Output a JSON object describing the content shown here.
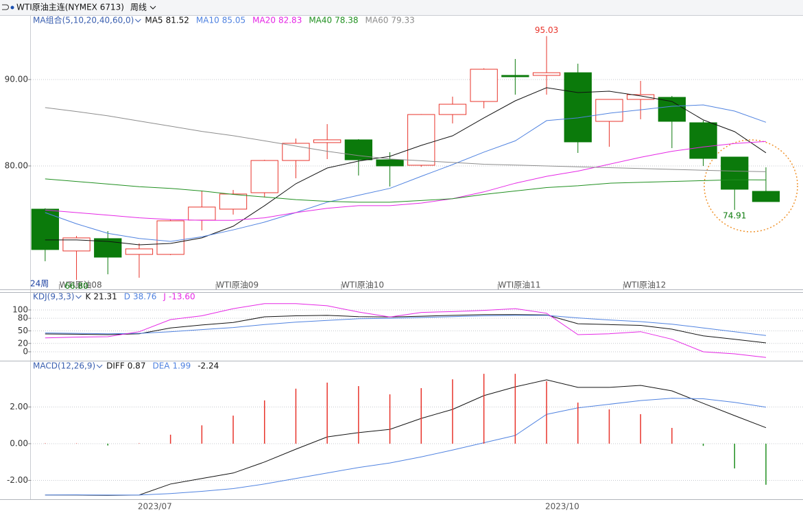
{
  "header": {
    "symbol": "WTI原油主连(NYMEX 6713)",
    "period": "周线"
  },
  "chart_data": [
    {
      "type": "candlestick",
      "indicator": "MA组合(5,10,20,40,60,0)",
      "period_label": "24周",
      "categories": [
        null,
        "WTI原油08",
        null,
        null,
        null,
        null,
        "WTI原油09",
        null,
        null,
        null,
        "WTI原油10",
        null,
        null,
        null,
        null,
        "WTI原油11",
        null,
        null,
        null,
        "WTI原油12",
        null,
        null,
        null,
        null
      ],
      "date_labels": [
        null,
        null,
        null,
        null,
        "2023/07",
        null,
        null,
        null,
        null,
        null,
        null,
        null,
        null,
        null,
        null,
        null,
        null,
        "2023/10",
        null,
        null,
        null,
        null,
        null,
        null
      ],
      "open": [
        75.0,
        70.16,
        71.59,
        69.76,
        69.76,
        73.73,
        75.0,
        76.9,
        80.63,
        82.7,
        83.02,
        80.71,
        80.08,
        85.95,
        87.46,
        90.48,
        90.48,
        90.79,
        85.16,
        87.7,
        87.94,
        85.0,
        81.03,
        77.06
      ],
      "high": [
        75.1,
        71.9,
        72.46,
        71.03,
        73.81,
        77.14,
        77.22,
        80.71,
        83.17,
        84.84,
        83.1,
        81.59,
        86.0,
        88.02,
        91.3,
        92.38,
        95.03,
        91.83,
        87.7,
        89.84,
        88.1,
        85.24,
        81.03,
        79.84
      ],
      "low": [
        68.97,
        66.8,
        67.46,
        67.06,
        69.68,
        72.54,
        74.37,
        76.35,
        78.57,
        80.79,
        78.89,
        77.62,
        79.9,
        84.92,
        86.67,
        88.25,
        88.25,
        81.51,
        82.22,
        85.4,
        82.06,
        80.0,
        74.91,
        75.87
      ],
      "close": [
        70.32,
        71.67,
        69.44,
        70.4,
        73.65,
        75.24,
        76.75,
        80.63,
        82.62,
        83.02,
        80.71,
        80.0,
        85.95,
        87.14,
        91.19,
        90.32,
        90.79,
        82.78,
        87.7,
        88.25,
        85.16,
        80.87,
        77.3,
        75.87
      ],
      "up_color": "#e8332a",
      "down_color": "#0b7a0b",
      "ylim": [
        65.87,
        97.3
      ],
      "yticks": [
        {
          "value": 80,
          "label": "80.00"
        },
        {
          "value": 90,
          "label": "90.00"
        }
      ],
      "grid": true,
      "annotations": [
        {
          "index": 1,
          "value": 66.8,
          "label": "66.80",
          "color": "#0b7a0b",
          "side": "below"
        },
        {
          "index": 16,
          "value": 95.03,
          "label": "95.03",
          "color": "#e8332a",
          "side": "above"
        },
        {
          "index": 22,
          "value": 74.91,
          "label": "74.91",
          "color": "#0b7a0b",
          "side": "below"
        }
      ],
      "series": [
        {
          "name": "MA5",
          "color": "#111111",
          "values": [
            71.43,
            71.43,
            71.27,
            70.87,
            71.03,
            71.67,
            73.02,
            75.4,
            77.94,
            79.76,
            80.56,
            81.11,
            82.38,
            83.49,
            85.56,
            87.54,
            89.05,
            88.49,
            88.65,
            88.1,
            87.46,
            85.32,
            83.97,
            81.52
          ]
        },
        {
          "name": "MA10",
          "color": "#4f82e0",
          "values": [
            74.6,
            73.3,
            72.2,
            71.6,
            71.27,
            71.8,
            72.6,
            73.5,
            74.6,
            75.8,
            76.6,
            77.4,
            78.8,
            80.16,
            81.6,
            82.9,
            85.24,
            85.56,
            86.1,
            86.5,
            86.9,
            87.06,
            86.35,
            85.05
          ]
        },
        {
          "name": "MA20",
          "color": "#e526e5",
          "values": [
            74.9,
            74.6,
            74.3,
            74.0,
            73.8,
            73.7,
            73.7,
            74.0,
            74.6,
            75.1,
            75.4,
            75.4,
            75.7,
            76.2,
            77.0,
            78.0,
            78.8,
            79.4,
            80.2,
            81.0,
            81.7,
            82.2,
            82.6,
            82.83
          ]
        },
        {
          "name": "MA40",
          "color": "#1f8f1f",
          "values": [
            78.5,
            78.2,
            77.9,
            77.6,
            77.4,
            77.1,
            76.7,
            76.4,
            76.1,
            75.9,
            75.8,
            75.8,
            76.0,
            76.2,
            76.7,
            77.1,
            77.5,
            77.7,
            78.0,
            78.1,
            78.2,
            78.3,
            78.4,
            78.38
          ]
        },
        {
          "name": "MA60",
          "color": "#8c8c8c",
          "values": [
            86.75,
            86.3,
            85.8,
            85.2,
            84.6,
            84.0,
            83.5,
            82.9,
            82.3,
            81.7,
            81.2,
            80.8,
            80.6,
            80.4,
            80.2,
            80.1,
            80.0,
            79.9,
            79.8,
            79.7,
            79.6,
            79.5,
            79.4,
            79.33
          ]
        }
      ]
    },
    {
      "type": "line",
      "indicator": "KDJ(9,3,3)",
      "ylim": [
        -19.7,
        136
      ],
      "yticks": [
        0,
        20,
        50,
        80,
        100
      ],
      "grid": true,
      "series": [
        {
          "name": "K",
          "color": "#111111",
          "values": [
            42.6,
            42,
            41,
            43,
            57,
            64,
            70,
            83.6,
            86,
            87,
            84,
            83,
            85,
            87,
            89,
            89,
            88,
            67,
            65,
            63,
            54,
            38,
            30,
            21.31
          ]
        },
        {
          "name": "D",
          "color": "#4f82e0",
          "values": [
            45,
            44,
            43,
            44,
            48,
            53,
            58,
            65,
            71,
            75,
            79,
            80,
            82,
            84,
            86,
            87,
            87,
            81,
            76,
            72,
            66,
            57,
            48,
            38.76
          ]
        },
        {
          "name": "J",
          "color": "#e526e5",
          "legend_value": "-13.60",
          "values": [
            33,
            35,
            36,
            48,
            77,
            86,
            103,
            115,
            115,
            110,
            95,
            83,
            94,
            96,
            99,
            103,
            92,
            41,
            43,
            48,
            30,
            0,
            -5,
            -13.6
          ]
        }
      ]
    },
    {
      "type": "macd",
      "indicator": "MACD(12,26,9)",
      "ylim": [
        -3.03,
        4.45
      ],
      "yticks": [
        {
          "value": -2,
          "label": "-2.00"
        },
        {
          "value": 0,
          "label": "0.00"
        },
        {
          "value": 2,
          "label": "2.00"
        }
      ],
      "grid": true,
      "up_color": "#e8332a",
      "down_color": "#1f8f1f",
      "series": [
        {
          "name": "DIFF",
          "color": "#111111",
          "values": [
            -2.8,
            -2.8,
            -2.82,
            -2.8,
            -2.2,
            -1.9,
            -1.6,
            -1.0,
            -0.3,
            0.37,
            0.6,
            0.78,
            1.38,
            1.87,
            2.62,
            3.1,
            3.48,
            3.07,
            3.07,
            3.18,
            2.88,
            2.2,
            1.53,
            0.87
          ]
        },
        {
          "name": "DEA",
          "color": "#4f82e0",
          "values": [
            -2.8,
            -2.79,
            -2.8,
            -2.8,
            -2.72,
            -2.6,
            -2.45,
            -2.2,
            -1.9,
            -1.6,
            -1.3,
            -1.05,
            -0.72,
            -0.35,
            0.05,
            0.45,
            1.6,
            1.95,
            2.15,
            2.35,
            2.48,
            2.45,
            2.25,
            1.99
          ]
        },
        {
          "kind": "bar",
          "color": "#111111",
          "values": [
            0.02,
            0.02,
            -0.1,
            0.02,
            0.49,
            1.0,
            1.53,
            2.36,
            3.0,
            3.33,
            3.14,
            2.69,
            3.03,
            3.51,
            3.81,
            3.81,
            3.4,
            2.24,
            1.87,
            1.61,
            0.86,
            -0.12,
            -1.35,
            -2.24
          ]
        }
      ]
    }
  ]
}
